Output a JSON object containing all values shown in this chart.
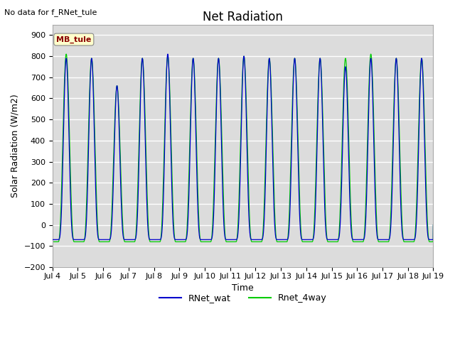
{
  "title": "Net Radiation",
  "xlabel": "Time",
  "ylabel": "Solar Radiation (W/m2)",
  "annotation": "No data for f_RNet_tule",
  "legend_box_label": "MB_tule",
  "ylim": [
    -200,
    950
  ],
  "yticks": [
    -200,
    -100,
    0,
    100,
    200,
    300,
    400,
    500,
    600,
    700,
    800,
    900
  ],
  "x_tick_labels": [
    "Jul 4",
    "Jul 5",
    "Jul 6",
    "Jul 7",
    "Jul 8",
    "Jul 9",
    "Jul 10",
    "Jul 11",
    "Jul 12",
    "Jul 13",
    "Jul 14",
    "Jul 15",
    "Jul 16",
    "Jul 17",
    "Jul 18",
    "Jul 19"
  ],
  "color_blue": "#0000cc",
  "color_green": "#00cc00",
  "legend_blue": "RNet_wat",
  "legend_green": "Rnet_4way",
  "bg_color": "#dcdcdc",
  "title_fontsize": 12,
  "label_fontsize": 9,
  "tick_fontsize": 8,
  "night_val_blue": -70,
  "night_val_green": -80,
  "peak_vals_blue": [
    790,
    790,
    660,
    790,
    810,
    790,
    790,
    800,
    790,
    790,
    790,
    750,
    790,
    790,
    790,
    790
  ],
  "peak_vals_green": [
    810,
    790,
    660,
    790,
    800,
    790,
    790,
    800,
    790,
    790,
    790,
    790,
    810,
    790,
    790,
    790
  ]
}
